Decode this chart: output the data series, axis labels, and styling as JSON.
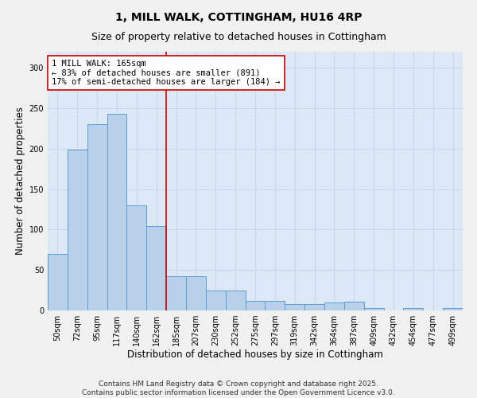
{
  "title": "1, MILL WALK, COTTINGHAM, HU16 4RP",
  "subtitle": "Size of property relative to detached houses in Cottingham",
  "xlabel": "Distribution of detached houses by size in Cottingham",
  "ylabel": "Number of detached properties",
  "categories": [
    "50sqm",
    "72sqm",
    "95sqm",
    "117sqm",
    "140sqm",
    "162sqm",
    "185sqm",
    "207sqm",
    "230sqm",
    "252sqm",
    "275sqm",
    "297sqm",
    "319sqm",
    "342sqm",
    "364sqm",
    "387sqm",
    "409sqm",
    "432sqm",
    "454sqm",
    "477sqm",
    "499sqm"
  ],
  "values": [
    70,
    199,
    230,
    243,
    130,
    104,
    42,
    42,
    25,
    25,
    12,
    12,
    8,
    8,
    10,
    11,
    3,
    0,
    3,
    0,
    3
  ],
  "bar_color": "#b8d0ea",
  "bar_edge_color": "#5a9fd4",
  "vline_x_index": 5,
  "vline_color": "#cc0000",
  "annotation_text": "1 MILL WALK: 165sqm\n← 83% of detached houses are smaller (891)\n17% of semi-detached houses are larger (184) →",
  "annotation_box_color": "#ffffff",
  "annotation_box_edge": "#cc0000",
  "annotation_fontsize": 7.5,
  "title_fontsize": 10,
  "subtitle_fontsize": 9,
  "xlabel_fontsize": 8.5,
  "ylabel_fontsize": 8.5,
  "tick_fontsize": 7,
  "ylim": [
    0,
    320
  ],
  "yticks": [
    0,
    50,
    100,
    150,
    200,
    250,
    300
  ],
  "grid_color": "#c8d4e8",
  "background_color": "#dce8f5",
  "fig_background": "#f0f0f0",
  "footer_line1": "Contains HM Land Registry data © Crown copyright and database right 2025.",
  "footer_line2": "Contains public sector information licensed under the Open Government Licence v3.0.",
  "footer_fontsize": 6.5
}
